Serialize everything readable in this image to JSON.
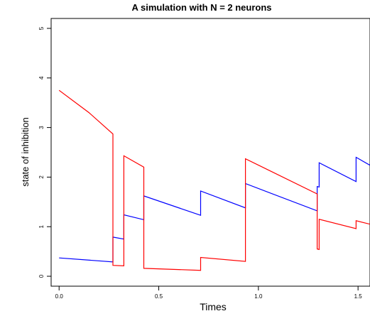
{
  "chart_data": {
    "type": "line",
    "title": "A simulation with N = 2 neurons",
    "xlabel": "Times",
    "ylabel": "state of inhibition",
    "xlim": [
      -0.04,
      1.56
    ],
    "ylim": [
      -0.2,
      5.2
    ],
    "x_ticks": [
      "0.0",
      "0.5",
      "1.0",
      "1.5"
    ],
    "x_tick_values": [
      0.0,
      0.5,
      1.0,
      1.5
    ],
    "y_ticks": [
      "0",
      "1",
      "2",
      "3",
      "4",
      "5"
    ],
    "y_tick_values": [
      0,
      1,
      2,
      3,
      4,
      5
    ],
    "grid": false,
    "series": [
      {
        "color": "#0000ff",
        "points": [
          [
            0.0,
            0.37
          ],
          [
            0.27,
            0.29
          ],
          [
            0.27,
            0.79
          ],
          [
            0.325,
            0.75
          ],
          [
            0.325,
            1.24
          ],
          [
            0.425,
            1.14
          ],
          [
            0.425,
            1.62
          ],
          [
            0.71,
            1.23
          ],
          [
            0.71,
            1.72
          ],
          [
            0.935,
            1.38
          ],
          [
            0.935,
            1.87
          ],
          [
            1.295,
            1.32
          ],
          [
            1.295,
            1.81
          ],
          [
            1.305,
            1.8
          ],
          [
            1.305,
            2.29
          ],
          [
            1.49,
            1.91
          ],
          [
            1.49,
            2.4
          ],
          [
            1.56,
            2.24
          ]
        ]
      },
      {
        "color": "#ff0000",
        "points": [
          [
            0.0,
            3.75
          ],
          [
            0.15,
            3.3
          ],
          [
            0.27,
            2.87
          ],
          [
            0.27,
            0.22
          ],
          [
            0.325,
            0.21
          ],
          [
            0.325,
            2.43
          ],
          [
            0.425,
            2.2
          ],
          [
            0.425,
            0.16
          ],
          [
            0.71,
            0.12
          ],
          [
            0.71,
            0.38
          ],
          [
            0.935,
            0.3
          ],
          [
            0.935,
            2.37
          ],
          [
            1.295,
            1.66
          ],
          [
            1.295,
            0.55
          ],
          [
            1.305,
            0.54
          ],
          [
            1.305,
            1.15
          ],
          [
            1.49,
            0.96
          ],
          [
            1.49,
            1.12
          ],
          [
            1.56,
            1.05
          ]
        ]
      }
    ]
  }
}
